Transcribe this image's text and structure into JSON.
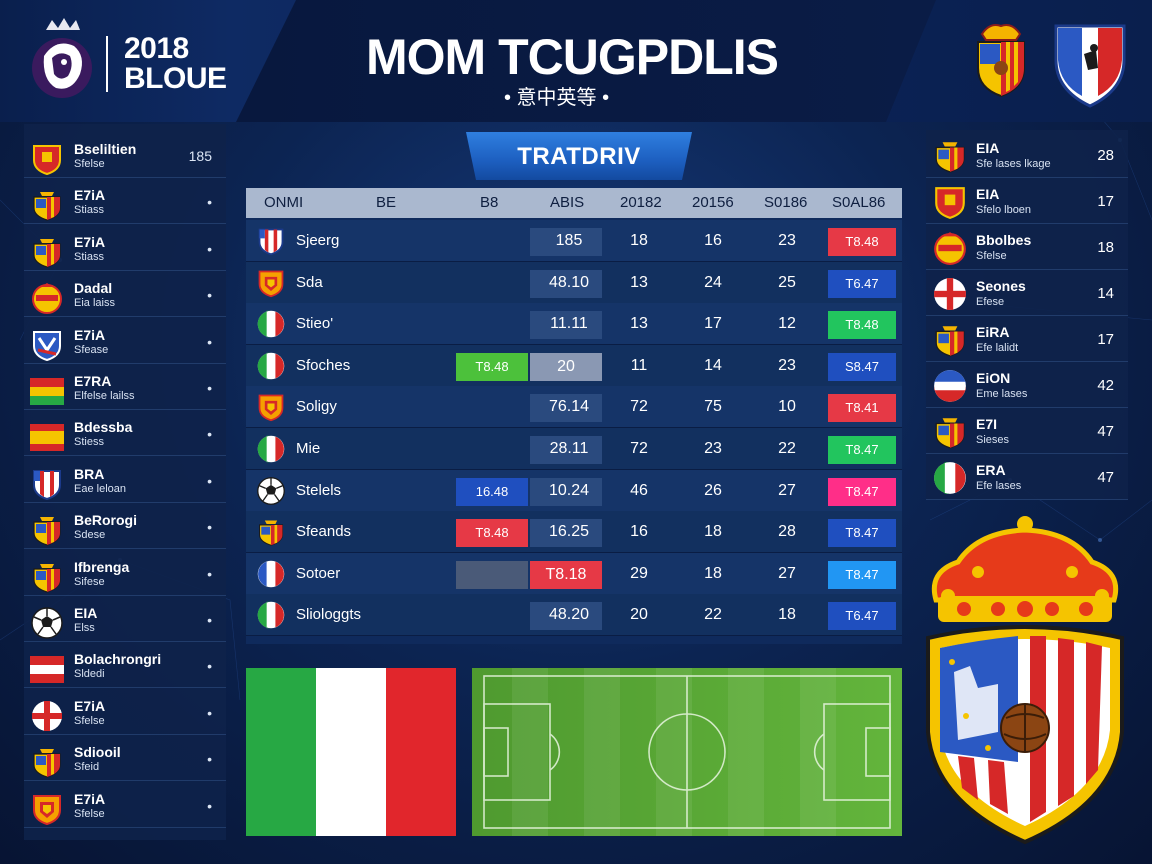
{
  "header": {
    "brand_line1": "2018",
    "brand_line2": "BLOUE",
    "title": "MOM TCUGPDLIS",
    "subtitle": "• 意中英等 •"
  },
  "section_tab": {
    "label": "TRATDRIV"
  },
  "table": {
    "headers": [
      "ONMI",
      "BE",
      "B8",
      "ABIS",
      "20182",
      "20156",
      "S0186",
      "S0AL86"
    ],
    "rows": [
      {
        "team": "Sjeerg",
        "flag": "shield-blue-red-icon",
        "c2": "",
        "c3": "185",
        "c4": "18",
        "c5": "16",
        "c6": "23",
        "badge": "T8.48",
        "badge_color": "#e63946"
      },
      {
        "team": "Sda",
        "flag": "shield-orange-icon",
        "c2": "",
        "c3": "48.10",
        "c4": "13",
        "c5": "24",
        "c6": "25",
        "badge": "T6.47",
        "badge_color": "#1f4fbf"
      },
      {
        "team": "Stieo'",
        "flag": "italy-flag-icon",
        "c2": "",
        "c3": "11.11",
        "c4": "13",
        "c5": "17",
        "c6": "12",
        "badge": "T8.48",
        "badge_color": "#22c55e"
      },
      {
        "team": "Sfoches",
        "flag": "italy-flag-icon",
        "c1": "T8.48",
        "c1_color": "#4cc13b",
        "c2": "20",
        "c3": "",
        "c4": "11",
        "c5": "14",
        "c6": "23",
        "badge": "S8.47",
        "badge_color": "#1f4fbf"
      },
      {
        "team": "Soligy",
        "flag": "shield-orange-icon",
        "c2": "",
        "c3": "76.14",
        "c4": "72",
        "c5": "75",
        "c6": "10",
        "badge": "T8.41",
        "badge_color": "#e63946"
      },
      {
        "team": "Mie",
        "flag": "italy-flag-icon",
        "c2": "",
        "c3": "28.11",
        "c4": "72",
        "c5": "23",
        "c6": "22",
        "badge": "T8.47",
        "badge_color": "#22c55e"
      },
      {
        "team": "Stelels",
        "flag": "soccer-ball-icon",
        "c1": "16.48",
        "c1_color": "#1f4fbf",
        "c2": "",
        "c3": "10.24",
        "c4": "46",
        "c5": "26",
        "c6": "27",
        "badge": "T8.47",
        "badge_color": "#ff2e88"
      },
      {
        "team": "Sfeands",
        "flag": "shield-red-yellow-icon",
        "c1": "T8.48",
        "c1_color": "#e63946",
        "c2": "",
        "c3": "16.25",
        "c4": "16",
        "c5": "18",
        "c6": "28",
        "badge": "T8.47",
        "badge_color": "#1f4fbf"
      },
      {
        "team": "Sotoer",
        "flag": "france-flag-icon",
        "c1": "",
        "c1_color": "#4a5a78",
        "c2": "T8.18",
        "c2_color": "#e63946",
        "c3": "",
        "c4": "29",
        "c5": "18",
        "c6": "27",
        "badge": "T8.47",
        "badge_color": "#2196f3"
      },
      {
        "team": "Sliologgts",
        "flag": "italy-flag-icon",
        "c2": "",
        "c3": "48.20",
        "c4": "20",
        "c5": "22",
        "c6": "18",
        "badge": "T6.47",
        "badge_color": "#1f4fbf"
      }
    ]
  },
  "left_list": [
    {
      "name": "Bseliltien",
      "sub": "Sfelse",
      "value": "185",
      "icon": "shield-red-icon"
    },
    {
      "name": "E7iA",
      "sub": "Stiass",
      "value": "•",
      "icon": "shield-red-yellow-icon"
    },
    {
      "name": "E7iA",
      "sub": "Stiass",
      "value": "•",
      "icon": "shield-red-yellow-icon"
    },
    {
      "name": "Dadal",
      "sub": "Eia laiss",
      "value": "•",
      "icon": "crest-yellow-red-icon"
    },
    {
      "name": "E7iA",
      "sub": "Sfease",
      "value": "•",
      "icon": "shield-blue-white-icon"
    },
    {
      "name": "E7RA",
      "sub": "Elfelse lailss",
      "value": "•",
      "icon": "bolivia-flag-icon"
    },
    {
      "name": "Bdessba",
      "sub": "Stiess",
      "value": "•",
      "icon": "spain-flag-icon"
    },
    {
      "name": "BRA",
      "sub": "Eae leloan",
      "value": "•",
      "icon": "shield-blue-red-icon"
    },
    {
      "name": "BeRorogi",
      "sub": "Sdese",
      "value": "•",
      "icon": "shield-red-yellow-icon"
    },
    {
      "name": "Ifbrenga",
      "sub": "Sifese",
      "value": "•",
      "icon": "shield-red-yellow-icon"
    },
    {
      "name": "EIA",
      "sub": "Elss",
      "value": "•",
      "icon": "soccer-ball-icon"
    },
    {
      "name": "Bolachrongri",
      "sub": "Sldedi",
      "value": "•",
      "icon": "austria-flag-icon"
    },
    {
      "name": "E7iA",
      "sub": "Sfelse",
      "value": "•",
      "icon": "england-flag-icon"
    },
    {
      "name": "Sdiooil",
      "sub": "Sfeid",
      "value": "•",
      "icon": "shield-red-yellow-icon"
    },
    {
      "name": "E7iA",
      "sub": "Sfelse",
      "value": "•",
      "icon": "shield-orange-icon"
    }
  ],
  "right_list": [
    {
      "name": "EIA",
      "sub": "Sfe lases lkage",
      "value": "28",
      "icon": "shield-red-yellow-icon"
    },
    {
      "name": "EIA",
      "sub": "Sfelo lboen",
      "value": "17",
      "icon": "shield-red-icon"
    },
    {
      "name": "Bbolbes",
      "sub": "Sfelse",
      "value": "18",
      "icon": "crest-yellow-red-icon"
    },
    {
      "name": "Seones",
      "sub": "Efese",
      "value": "14",
      "icon": "england-flag-icon"
    },
    {
      "name": "EiRA",
      "sub": "Efe lalidt",
      "value": "17",
      "icon": "shield-red-yellow-icon"
    },
    {
      "name": "EiON",
      "sub": "Eme lases",
      "value": "42",
      "icon": "france-round-icon"
    },
    {
      "name": "E7I",
      "sub": "Sieses",
      "value": "47",
      "icon": "shield-red-yellow-icon"
    },
    {
      "name": "ERA",
      "sub": "Efe lases",
      "value": "47",
      "icon": "italy-flag-icon"
    }
  ],
  "colors": {
    "accent_blue": "#1d5fc0",
    "header_row": "#aab8cf",
    "panel": "#0e224a"
  }
}
